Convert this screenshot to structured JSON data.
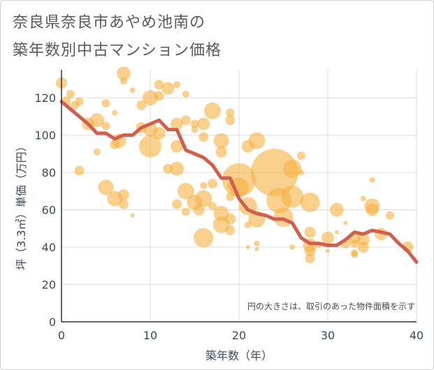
{
  "chart_data": {
    "type": "scatter",
    "title_lines": [
      "奈良県奈良市あやめ池南の",
      "築年数別中古マンション価格"
    ],
    "xlabel": "築年数（年）",
    "ylabel": "坪（3.3㎡）単価（万円）",
    "xlim": [
      0,
      40
    ],
    "ylim": [
      0,
      135
    ],
    "xticks": [
      0,
      10,
      20,
      30,
      40
    ],
    "yticks": [
      0,
      20,
      40,
      60,
      80,
      100,
      120
    ],
    "grid": true,
    "note": "円の大きさは、取引のあった物件面積を示す",
    "bubble_color": "#f5b041",
    "line_color": "#d0604c",
    "line": {
      "name": "",
      "x": [
        0,
        1,
        2,
        3,
        4,
        5,
        6,
        7,
        8,
        9,
        10,
        11,
        12,
        13,
        14,
        15,
        16,
        17,
        18,
        19,
        20,
        21,
        22,
        23,
        24,
        25,
        26,
        27,
        28,
        29,
        30,
        31,
        32,
        33,
        34,
        35,
        36,
        37,
        38,
        39,
        40
      ],
      "y": [
        118,
        114,
        110,
        106,
        101,
        101,
        98,
        100,
        100,
        104,
        106,
        108,
        103,
        103,
        92,
        90,
        88,
        84,
        77,
        77,
        66,
        60,
        58,
        57,
        55,
        55,
        53,
        45,
        42,
        42,
        41,
        41,
        44,
        48,
        47,
        49,
        48,
        47,
        42,
        38,
        32
      ]
    },
    "points": [
      {
        "x": 0,
        "y": 128,
        "s": 8
      },
      {
        "x": 0.5,
        "y": 118,
        "s": 7
      },
      {
        "x": 1,
        "y": 122,
        "s": 6
      },
      {
        "x": 1.5,
        "y": 116,
        "s": 6
      },
      {
        "x": 2,
        "y": 118,
        "s": 6
      },
      {
        "x": 2,
        "y": 81,
        "s": 7
      },
      {
        "x": 3,
        "y": 106,
        "s": 9
      },
      {
        "x": 4,
        "y": 108,
        "s": 10
      },
      {
        "x": 4,
        "y": 91,
        "s": 5
      },
      {
        "x": 5,
        "y": 117,
        "s": 6
      },
      {
        "x": 5,
        "y": 105,
        "s": 6
      },
      {
        "x": 5,
        "y": 72,
        "s": 11
      },
      {
        "x": 6,
        "y": 112,
        "s": 4
      },
      {
        "x": 6,
        "y": 95,
        "s": 7
      },
      {
        "x": 6,
        "y": 66,
        "s": 11
      },
      {
        "x": 6.5,
        "y": 97,
        "s": 10
      },
      {
        "x": 7,
        "y": 133,
        "s": 10
      },
      {
        "x": 7,
        "y": 129,
        "s": 5
      },
      {
        "x": 7,
        "y": 68,
        "s": 8
      },
      {
        "x": 7,
        "y": 63,
        "s": 7
      },
      {
        "x": 8,
        "y": 124,
        "s": 4
      },
      {
        "x": 8,
        "y": 57,
        "s": 3
      },
      {
        "x": 9,
        "y": 116,
        "s": 7
      },
      {
        "x": 9,
        "y": 104,
        "s": 8
      },
      {
        "x": 10,
        "y": 120,
        "s": 11
      },
      {
        "x": 10,
        "y": 103,
        "s": 10
      },
      {
        "x": 10,
        "y": 94,
        "s": 16
      },
      {
        "x": 11,
        "y": 127,
        "s": 7
      },
      {
        "x": 11,
        "y": 121,
        "s": 7
      },
      {
        "x": 11,
        "y": 101,
        "s": 9
      },
      {
        "x": 12,
        "y": 125,
        "s": 9
      },
      {
        "x": 12,
        "y": 82,
        "s": 7
      },
      {
        "x": 13,
        "y": 127,
        "s": 5
      },
      {
        "x": 13,
        "y": 106,
        "s": 9
      },
      {
        "x": 13,
        "y": 94,
        "s": 9
      },
      {
        "x": 13,
        "y": 82,
        "s": 10
      },
      {
        "x": 13,
        "y": 63,
        "s": 7
      },
      {
        "x": 14,
        "y": 122,
        "s": 5
      },
      {
        "x": 14,
        "y": 108,
        "s": 7
      },
      {
        "x": 14,
        "y": 70,
        "s": 12
      },
      {
        "x": 14,
        "y": 59,
        "s": 6
      },
      {
        "x": 15,
        "y": 106,
        "s": 6
      },
      {
        "x": 15,
        "y": 103,
        "s": 5
      },
      {
        "x": 15,
        "y": 64,
        "s": 11
      },
      {
        "x": 15.5,
        "y": 60,
        "s": 8
      },
      {
        "x": 16,
        "y": 106,
        "s": 9
      },
      {
        "x": 16,
        "y": 99,
        "s": 7
      },
      {
        "x": 16,
        "y": 73,
        "s": 5
      },
      {
        "x": 16,
        "y": 66,
        "s": 12
      },
      {
        "x": 16,
        "y": 45,
        "s": 14
      },
      {
        "x": 17,
        "y": 113,
        "s": 12
      },
      {
        "x": 17,
        "y": 74,
        "s": 7
      },
      {
        "x": 17,
        "y": 62,
        "s": 6
      },
      {
        "x": 18,
        "y": 97,
        "s": 11
      },
      {
        "x": 18,
        "y": 91,
        "s": 8
      },
      {
        "x": 18,
        "y": 58,
        "s": 11
      },
      {
        "x": 18,
        "y": 52,
        "s": 12
      },
      {
        "x": 19,
        "y": 112,
        "s": 6
      },
      {
        "x": 19,
        "y": 108,
        "s": 7
      },
      {
        "x": 19,
        "y": 73,
        "s": 5
      },
      {
        "x": 19,
        "y": 67,
        "s": 6
      },
      {
        "x": 19,
        "y": 55,
        "s": 8
      },
      {
        "x": 19,
        "y": 49,
        "s": 7
      },
      {
        "x": 20,
        "y": 76,
        "s": 24
      },
      {
        "x": 20,
        "y": 72,
        "s": 14
      },
      {
        "x": 21,
        "y": 94,
        "s": 9
      },
      {
        "x": 21,
        "y": 62,
        "s": 13
      },
      {
        "x": 21,
        "y": 52,
        "s": 5
      },
      {
        "x": 21,
        "y": 40,
        "s": 3
      },
      {
        "x": 22,
        "y": 97,
        "s": 12
      },
      {
        "x": 22,
        "y": 55,
        "s": 12
      },
      {
        "x": 22,
        "y": 42,
        "s": 4
      },
      {
        "x": 22,
        "y": 39,
        "s": 3
      },
      {
        "x": 24,
        "y": 80,
        "s": 34
      },
      {
        "x": 24.5,
        "y": 65,
        "s": 18
      },
      {
        "x": 25,
        "y": 56,
        "s": 14
      },
      {
        "x": 26,
        "y": 82,
        "s": 13
      },
      {
        "x": 26,
        "y": 67,
        "s": 16
      },
      {
        "x": 26,
        "y": 40,
        "s": 4
      },
      {
        "x": 27,
        "y": 89,
        "s": 6
      },
      {
        "x": 27,
        "y": 80,
        "s": 4
      },
      {
        "x": 28,
        "y": 64,
        "s": 14
      },
      {
        "x": 28,
        "y": 48,
        "s": 8
      },
      {
        "x": 28,
        "y": 41,
        "s": 10
      },
      {
        "x": 28,
        "y": 38,
        "s": 8
      },
      {
        "x": 28,
        "y": 34,
        "s": 7
      },
      {
        "x": 29,
        "y": 41,
        "s": 4
      },
      {
        "x": 30,
        "y": 45,
        "s": 9
      },
      {
        "x": 30,
        "y": 38,
        "s": 3
      },
      {
        "x": 31,
        "y": 60,
        "s": 10
      },
      {
        "x": 31,
        "y": 48,
        "s": 3
      },
      {
        "x": 32,
        "y": 53,
        "s": 3
      },
      {
        "x": 32,
        "y": 42,
        "s": 7
      },
      {
        "x": 33,
        "y": 45,
        "s": 9
      },
      {
        "x": 33,
        "y": 42,
        "s": 6
      },
      {
        "x": 33,
        "y": 37,
        "s": 5
      },
      {
        "x": 33,
        "y": 36,
        "s": 5
      },
      {
        "x": 34,
        "y": 66,
        "s": 4
      },
      {
        "x": 34,
        "y": 44,
        "s": 9
      },
      {
        "x": 34,
        "y": 40,
        "s": 8
      },
      {
        "x": 35,
        "y": 76,
        "s": 4
      },
      {
        "x": 35,
        "y": 62,
        "s": 11
      },
      {
        "x": 35,
        "y": 60,
        "s": 9
      },
      {
        "x": 36,
        "y": 47,
        "s": 9
      },
      {
        "x": 37,
        "y": 57,
        "s": 6
      },
      {
        "x": 39,
        "y": 40,
        "s": 8
      }
    ]
  }
}
